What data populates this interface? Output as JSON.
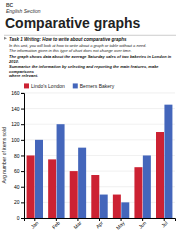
{
  "chart_data": {
    "type": "bar",
    "title": "Comparative graphs",
    "annotations": [
      "BC",
      "English Section",
      "Task 1 Writing: How to write about comparative graphs",
      "In this unit, you will look at how to write about a graph or table without a need.",
      "The information given in this type of chart does not change over time.",
      "The graph shows data about the average Saturday sales of two bakeries in London in 2010.",
      "Summarise the information by selecting and reporting the main features, make comparisons",
      "where relevant."
    ],
    "y_label": "Avg number of items sold",
    "categories": [
      "Jan",
      "Feb",
      "Mar",
      "Apr",
      "May",
      "Jun",
      "Jul"
    ],
    "series": [
      {
        "name": "Lindo's London",
        "color": "#cc2233",
        "values": [
          80,
          75,
          60,
          55,
          30,
          65,
          110
        ]
      },
      {
        "name": "Berners Bakery",
        "color": "#4466bb",
        "values": [
          100,
          120,
          90,
          30,
          20,
          80,
          145
        ]
      }
    ],
    "ylim": [
      0,
      160
    ],
    "yticks": [
      0,
      20,
      40,
      60,
      80,
      100,
      120,
      140,
      160
    ],
    "grid": true
  }
}
